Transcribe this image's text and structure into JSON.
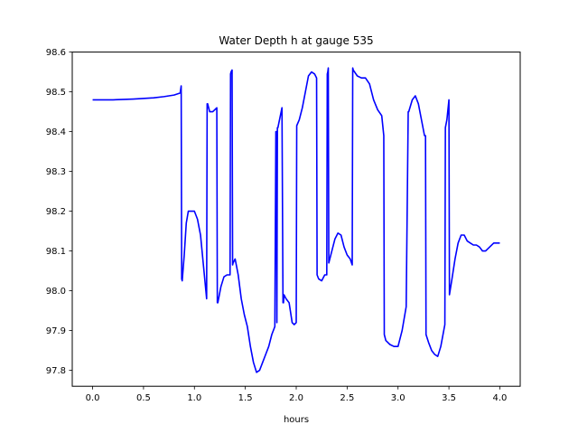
{
  "chart_data": {
    "type": "line",
    "title": "Water Depth h at gauge 535",
    "xlabel": "hours",
    "ylabel": "",
    "xlim": [
      -0.2,
      4.2
    ],
    "ylim": [
      97.76,
      98.6
    ],
    "xticks": [
      0.0,
      0.5,
      1.0,
      1.5,
      2.0,
      2.5,
      3.0,
      3.5,
      4.0
    ],
    "xtick_labels": [
      "0.0",
      "0.5",
      "1.0",
      "1.5",
      "2.0",
      "2.5",
      "3.0",
      "3.5",
      "4.0"
    ],
    "yticks": [
      97.8,
      97.9,
      98.0,
      98.1,
      98.2,
      98.3,
      98.4,
      98.5,
      98.6
    ],
    "ytick_labels": [
      "97.8",
      "97.9",
      "98.0",
      "98.1",
      "98.2",
      "98.3",
      "98.4",
      "98.5",
      "98.6"
    ],
    "grid": false,
    "series": [
      {
        "color": "#0000ff",
        "x": [
          0.0,
          0.2,
          0.4,
          0.6,
          0.7,
          0.8,
          0.86,
          0.87,
          0.875,
          0.88,
          0.9,
          0.92,
          0.94,
          0.97,
          1.0,
          1.03,
          1.06,
          1.09,
          1.12,
          1.125,
          1.13,
          1.15,
          1.18,
          1.22,
          1.225,
          1.23,
          1.26,
          1.29,
          1.32,
          1.35,
          1.355,
          1.36,
          1.37,
          1.375,
          1.38,
          1.4,
          1.43,
          1.46,
          1.49,
          1.52,
          1.55,
          1.58,
          1.61,
          1.64,
          1.67,
          1.7,
          1.73,
          1.76,
          1.79,
          1.8,
          1.805,
          1.81,
          1.815,
          1.82,
          1.86,
          1.87,
          1.875,
          1.88,
          1.9,
          1.93,
          1.96,
          1.98,
          2.0,
          2.005,
          2.03,
          2.06,
          2.09,
          2.12,
          2.15,
          2.18,
          2.2,
          2.205,
          2.22,
          2.25,
          2.28,
          2.3,
          2.305,
          2.31,
          2.315,
          2.32,
          2.35,
          2.38,
          2.41,
          2.44,
          2.47,
          2.5,
          2.53,
          2.55,
          2.555,
          2.56,
          2.6,
          2.64,
          2.68,
          2.72,
          2.76,
          2.8,
          2.84,
          2.86,
          2.865,
          2.88,
          2.92,
          2.96,
          3.0,
          3.04,
          3.08,
          3.1,
          3.105,
          3.14,
          3.17,
          3.2,
          3.23,
          3.26,
          3.27,
          3.275,
          3.3,
          3.33,
          3.36,
          3.39,
          3.42,
          3.46,
          3.465,
          3.48,
          3.5,
          3.505,
          3.53,
          3.56,
          3.59,
          3.62,
          3.65,
          3.68,
          3.71,
          3.74,
          3.77,
          3.8,
          3.83,
          3.86,
          3.9,
          3.94,
          3.98,
          4.0
        ],
        "y": [
          98.48,
          98.48,
          98.482,
          98.485,
          98.488,
          98.492,
          98.497,
          98.515,
          98.03,
          98.025,
          98.09,
          98.17,
          98.2,
          98.2,
          98.2,
          98.18,
          98.14,
          98.06,
          97.98,
          98.47,
          98.47,
          98.45,
          98.45,
          98.46,
          97.97,
          97.97,
          98.01,
          98.035,
          98.04,
          98.04,
          98.545,
          98.55,
          98.555,
          98.065,
          98.07,
          98.08,
          98.04,
          97.98,
          97.94,
          97.91,
          97.86,
          97.82,
          97.795,
          97.8,
          97.82,
          97.84,
          97.86,
          97.89,
          97.91,
          98.4,
          98.4,
          97.92,
          98.41,
          98.41,
          98.46,
          97.97,
          97.97,
          97.99,
          97.98,
          97.97,
          97.92,
          97.915,
          97.92,
          98.415,
          98.43,
          98.46,
          98.5,
          98.54,
          98.55,
          98.545,
          98.535,
          98.04,
          98.03,
          98.025,
          98.04,
          98.04,
          98.545,
          98.55,
          98.56,
          98.07,
          98.1,
          98.13,
          98.145,
          98.14,
          98.11,
          98.09,
          98.08,
          98.065,
          98.56,
          98.555,
          98.54,
          98.535,
          98.535,
          98.52,
          98.48,
          98.455,
          98.44,
          98.39,
          97.89,
          97.875,
          97.865,
          97.86,
          97.86,
          97.9,
          97.96,
          98.45,
          98.45,
          98.48,
          98.49,
          98.47,
          98.43,
          98.39,
          98.39,
          97.89,
          97.87,
          97.85,
          97.84,
          97.835,
          97.86,
          97.915,
          98.41,
          98.43,
          98.48,
          97.99,
          98.03,
          98.08,
          98.12,
          98.14,
          98.14,
          98.125,
          98.12,
          98.115,
          98.115,
          98.11,
          98.1,
          98.1,
          98.11,
          98.12,
          98.12,
          98.12
        ]
      }
    ]
  }
}
